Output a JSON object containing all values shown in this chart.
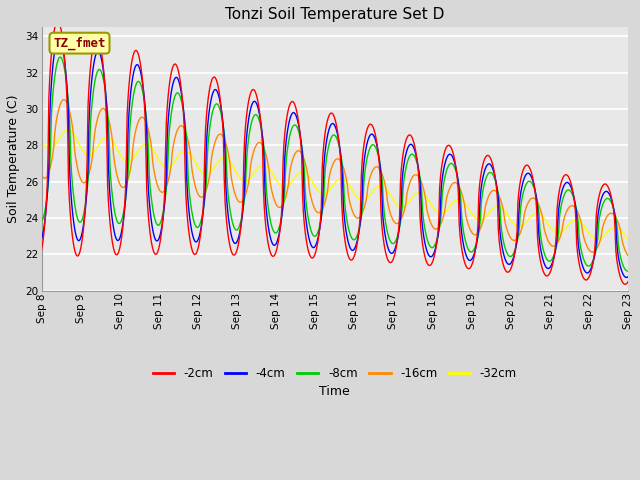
{
  "title": "Tonzi Soil Temperature Set D",
  "xlabel": "Time",
  "ylabel": "Soil Temperature (C)",
  "ylim": [
    20,
    34.5
  ],
  "annotation": "TZ_fmet",
  "legend_labels": [
    "-2cm",
    "-4cm",
    "-8cm",
    "-16cm",
    "-32cm"
  ],
  "legend_colors": [
    "#ff0000",
    "#0000ff",
    "#00cc00",
    "#ff8800",
    "#ffff00"
  ],
  "background_color": "#e8e8e8",
  "grid_color": "#ffffff",
  "n_days": 15,
  "start_day": 8,
  "samples_per_day": 48,
  "title_fontsize": 11,
  "tick_fontsize": 7.5,
  "label_fontsize": 9,
  "yticks": [
    20,
    22,
    24,
    26,
    28,
    30,
    32,
    34
  ]
}
